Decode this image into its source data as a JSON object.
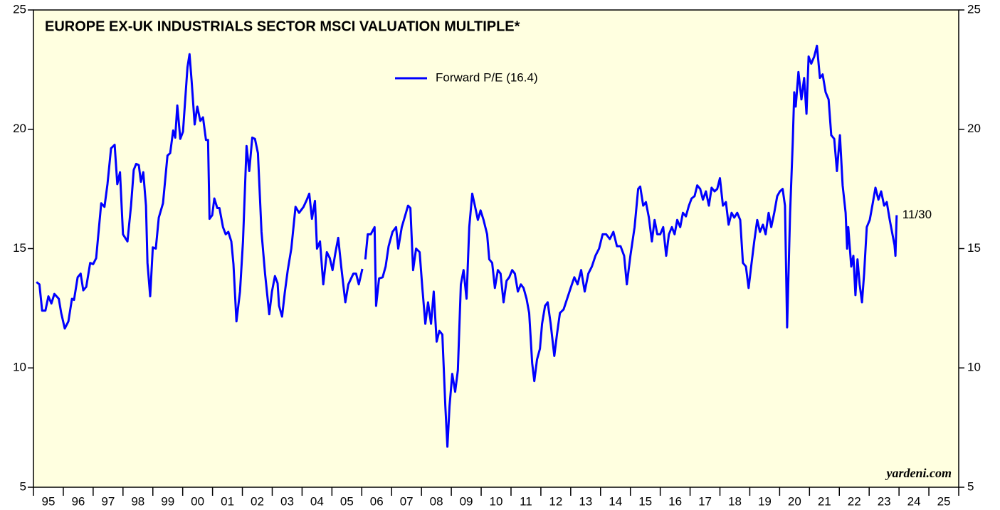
{
  "chart_data": {
    "type": "line",
    "title": "EUROPE EX-UK INDUSTRIALS SECTOR MSCI VALUATION MULTIPLE*",
    "categories": [
      "95",
      "96",
      "97",
      "98",
      "99",
      "00",
      "01",
      "02",
      "03",
      "04",
      "05",
      "06",
      "07",
      "08",
      "09",
      "10",
      "11",
      "12",
      "13",
      "14",
      "15",
      "16",
      "17",
      "18",
      "19",
      "20",
      "21",
      "22",
      "23",
      "24",
      "25"
    ],
    "xlim": [
      1995,
      2026
    ],
    "xticks": [
      1995,
      1996,
      1997,
      1998,
      1999,
      2000,
      2001,
      2002,
      2003,
      2004,
      2005,
      2006,
      2007,
      2008,
      2009,
      2010,
      2011,
      2012,
      2013,
      2014,
      2015,
      2016,
      2017,
      2018,
      2019,
      2020,
      2021,
      2022,
      2023,
      2024,
      2025,
      2026
    ],
    "ylim": [
      5,
      25
    ],
    "yticks": [
      5,
      10,
      15,
      20,
      25
    ],
    "background": "#ffffe0",
    "annotation": "11/30",
    "credit": "yardeni.com",
    "x": [
      1995.1,
      1995.2,
      1995.29,
      1995.4,
      1995.5,
      1995.6,
      1995.7,
      1995.85,
      1995.93,
      1996.05,
      1996.17,
      1996.29,
      1996.36,
      1996.48,
      1996.58,
      1996.67,
      1996.77,
      1996.9,
      1997.0,
      1997.1,
      1997.27,
      1997.38,
      1997.48,
      1997.6,
      1997.72,
      1997.81,
      1997.9,
      1998.0,
      1998.15,
      1998.27,
      1998.36,
      1998.44,
      1998.53,
      1998.6,
      1998.68,
      1998.77,
      1998.82,
      1998.91,
      1999.0,
      1999.1,
      1999.2,
      1999.34,
      1999.49,
      1999.58,
      1999.68,
      1999.75,
      1999.82,
      1999.92,
      2000.01,
      2000.16,
      2000.23,
      2000.3,
      2000.4,
      2000.49,
      2000.59,
      2000.68,
      2000.78,
      2000.85,
      2000.9,
      2000.99,
      2001.06,
      2001.16,
      2001.23,
      2001.35,
      2001.44,
      2001.53,
      2001.63,
      2001.7,
      2001.8,
      2001.92,
      2002.02,
      2002.14,
      2002.23,
      2002.33,
      2002.42,
      2002.52,
      2002.64,
      2002.76,
      2002.9,
      2002.99,
      2003.09,
      2003.18,
      2003.23,
      2003.33,
      2003.42,
      2003.52,
      2003.64,
      2003.78,
      2003.9,
      2004.05,
      2004.16,
      2004.24,
      2004.33,
      2004.43,
      2004.5,
      2004.6,
      2004.71,
      2004.83,
      2004.93,
      2005.02,
      2005.12,
      2005.21,
      2005.31,
      2005.45,
      2005.55,
      2005.72,
      2005.81,
      2005.9,
      2006.02,
      2006.07,
      2006.12,
      2006.2,
      2006.3,
      2006.43,
      2006.48,
      2006.58,
      2006.7,
      2006.8,
      2006.9,
      2007.03,
      2007.15,
      2007.22,
      2007.34,
      2007.48,
      2007.55,
      2007.63,
      2007.72,
      2007.82,
      2007.94,
      2008.03,
      2008.13,
      2008.22,
      2008.32,
      2008.41,
      2008.51,
      2008.6,
      2008.7,
      2008.8,
      2008.87,
      2008.94,
      2009.03,
      2009.13,
      2009.22,
      2009.32,
      2009.41,
      2009.51,
      2009.6,
      2009.7,
      2009.79,
      2009.89,
      2009.98,
      2010.08,
      2010.2,
      2010.27,
      2010.37,
      2010.46,
      2010.56,
      2010.65,
      2010.75,
      2010.85,
      2010.94,
      2011.04,
      2011.13,
      2011.23,
      2011.33,
      2011.42,
      2011.52,
      2011.61,
      2011.71,
      2011.78,
      2011.87,
      2011.97,
      2012.04,
      2012.14,
      2012.23,
      2012.33,
      2012.45,
      2012.54,
      2012.64,
      2012.76,
      2012.88,
      2013.0,
      2013.12,
      2013.23,
      2013.35,
      2013.47,
      2013.59,
      2013.71,
      2013.83,
      2013.95,
      2014.07,
      2014.19,
      2014.31,
      2014.43,
      2014.55,
      2014.67,
      2014.79,
      2014.88,
      2015.0,
      2015.14,
      2015.26,
      2015.33,
      2015.43,
      2015.52,
      2015.62,
      2015.72,
      2015.81,
      2015.9,
      2016.0,
      2016.1,
      2016.2,
      2016.29,
      2016.39,
      2016.48,
      2016.57,
      2016.67,
      2016.76,
      2016.86,
      2016.96,
      2017.05,
      2017.15,
      2017.24,
      2017.34,
      2017.43,
      2017.53,
      2017.63,
      2017.72,
      2017.82,
      2017.91,
      2018.0,
      2018.1,
      2018.2,
      2018.29,
      2018.39,
      2018.48,
      2018.58,
      2018.68,
      2018.77,
      2018.87,
      2018.96,
      2019.06,
      2019.15,
      2019.25,
      2019.34,
      2019.44,
      2019.53,
      2019.63,
      2019.72,
      2019.82,
      2019.92,
      2020.01,
      2020.1,
      2020.18,
      2020.25,
      2020.35,
      2020.44,
      2020.49,
      2020.54,
      2020.63,
      2020.73,
      2020.82,
      2020.9,
      2020.97,
      2021.06,
      2021.16,
      2021.25,
      2021.35,
      2021.44,
      2021.54,
      2021.64,
      2021.73,
      2021.83,
      2021.92,
      2022.02,
      2022.11,
      2022.21,
      2022.26,
      2022.3,
      2022.4,
      2022.47,
      2022.54,
      2022.61,
      2022.68,
      2022.76,
      2022.83,
      2022.92,
      2023.02,
      2023.12,
      2023.21,
      2023.31,
      2023.4,
      2023.5,
      2023.59,
      2023.69,
      2023.78,
      2023.85,
      2023.88,
      2023.92
    ],
    "series": [
      {
        "name": "Forward P/E (16.4)",
        "color": "#0000ff",
        "values": [
          13.6,
          13.5,
          12.4,
          12.4,
          13.0,
          12.7,
          13.1,
          12.9,
          12.3,
          11.65,
          11.95,
          12.9,
          12.85,
          13.8,
          13.95,
          13.25,
          13.4,
          14.4,
          14.35,
          14.6,
          16.9,
          16.75,
          17.7,
          19.2,
          19.35,
          17.7,
          18.2,
          15.6,
          15.3,
          16.8,
          18.3,
          18.55,
          18.5,
          17.8,
          18.2,
          16.8,
          14.4,
          13.0,
          15.05,
          15.0,
          16.3,
          16.9,
          18.9,
          19.0,
          19.95,
          19.65,
          21.0,
          19.6,
          19.9,
          22.6,
          23.15,
          22.0,
          20.2,
          20.95,
          20.35,
          20.5,
          19.55,
          19.55,
          16.25,
          16.4,
          17.1,
          16.7,
          16.7,
          15.9,
          15.6,
          15.7,
          15.3,
          14.35,
          11.95,
          13.2,
          15.3,
          19.3,
          18.25,
          19.65,
          19.6,
          19.0,
          15.7,
          13.95,
          12.25,
          13.2,
          13.85,
          13.55,
          12.6,
          12.15,
          13.15,
          14.1,
          15.0,
          16.75,
          16.5,
          16.75,
          17.05,
          17.3,
          16.25,
          17.0,
          15.0,
          15.3,
          13.5,
          14.85,
          14.6,
          14.1,
          14.85,
          15.45,
          14.25,
          12.75,
          13.5,
          13.95,
          13.95,
          13.5,
          14.15,
          null,
          14.55,
          15.6,
          15.6,
          15.9,
          12.6,
          13.75,
          13.8,
          14.25,
          15.1,
          15.7,
          15.9,
          15.0,
          15.9,
          16.5,
          16.8,
          16.7,
          14.1,
          15.0,
          14.85,
          13.35,
          11.85,
          12.75,
          11.85,
          13.2,
          11.1,
          11.55,
          11.4,
          8.4,
          6.7,
          8.4,
          9.75,
          9.0,
          9.9,
          13.5,
          14.1,
          12.9,
          15.9,
          17.3,
          16.8,
          16.2,
          16.6,
          16.2,
          15.6,
          14.55,
          14.4,
          13.35,
          14.1,
          13.95,
          12.75,
          13.65,
          13.8,
          14.1,
          13.95,
          13.2,
          13.5,
          13.35,
          12.9,
          12.3,
          10.2,
          9.45,
          10.35,
          10.8,
          11.85,
          12.6,
          12.75,
          11.85,
          10.5,
          11.4,
          12.3,
          12.45,
          12.9,
          13.35,
          13.8,
          13.5,
          14.1,
          13.2,
          13.95,
          14.25,
          14.7,
          15.0,
          15.6,
          15.6,
          15.4,
          15.7,
          15.1,
          15.1,
          14.7,
          13.5,
          14.7,
          15.9,
          17.5,
          17.6,
          16.8,
          16.95,
          16.3,
          15.3,
          16.2,
          15.6,
          15.6,
          15.9,
          14.7,
          15.6,
          15.9,
          15.6,
          16.2,
          15.9,
          16.5,
          16.35,
          16.8,
          17.1,
          17.2,
          17.65,
          17.5,
          17.05,
          17.4,
          16.8,
          17.55,
          17.4,
          17.5,
          17.95,
          16.8,
          16.95,
          16.0,
          16.5,
          16.3,
          16.5,
          16.2,
          14.4,
          14.25,
          13.35,
          14.4,
          15.3,
          16.2,
          15.7,
          16.0,
          15.6,
          16.5,
          15.9,
          16.5,
          17.2,
          17.4,
          17.5,
          16.8,
          11.7,
          16.5,
          19.45,
          21.55,
          20.95,
          22.4,
          21.25,
          22.15,
          20.65,
          23.05,
          22.75,
          23.05,
          23.5,
          22.15,
          22.3,
          21.55,
          21.25,
          19.75,
          19.6,
          18.25,
          19.75,
          17.65,
          16.5,
          15.0,
          15.9,
          14.25,
          14.7,
          13.05,
          14.55,
          13.5,
          12.75,
          13.95,
          15.9,
          16.2,
          16.9,
          17.55,
          17.05,
          17.4,
          16.8,
          16.95,
          16.2,
          15.6,
          15.15,
          14.7,
          16.4
        ]
      }
    ]
  }
}
